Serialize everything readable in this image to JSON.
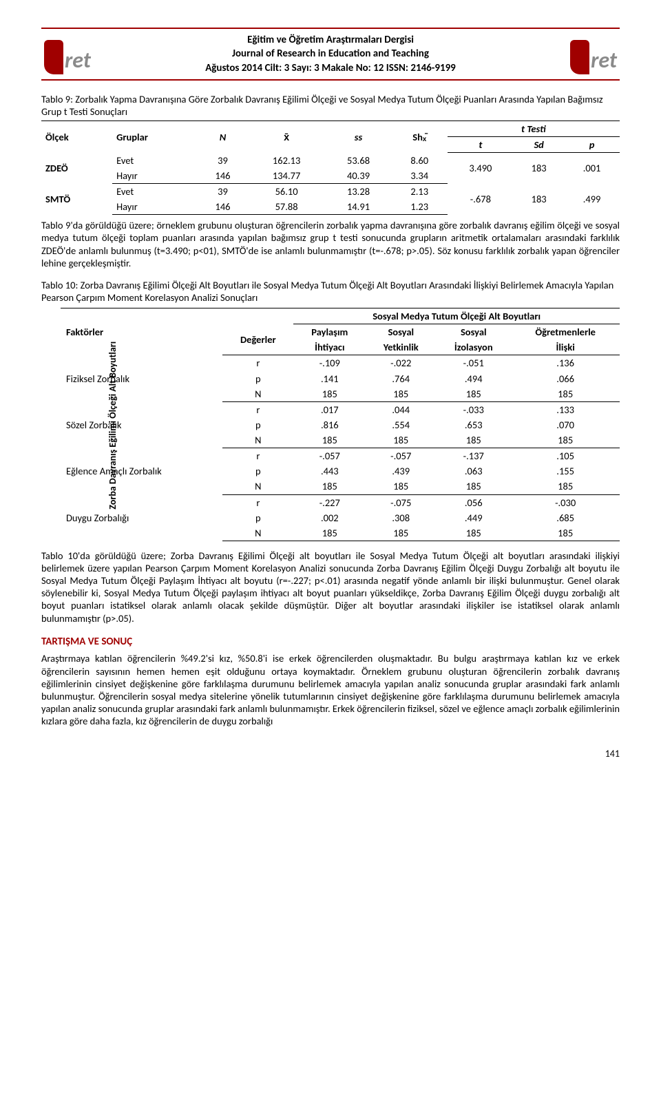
{
  "colors": {
    "accent": "#a00000",
    "text": "#000000",
    "bg": "#ffffff"
  },
  "header": {
    "line1": "Eğitim ve Öğretim Araştırmaları Dergisi",
    "line2": "Journal of Research in Education and Teaching",
    "line3": "Ağustos 2014  Cilt: 3  Sayı: 3  Makale No: 12   ISSN: 2146-9199",
    "logo_text": "ret"
  },
  "table9": {
    "caption": "Tablo 9: Zorbalık Yapma Davranışına Göre Zorbalık Davranış Eğilimi Ölçeği ve Sosyal Medya Tutum Ölçeği Puanları Arasında Yapılan Bağımsız Grup t Testi Sonuçları",
    "headers": {
      "olcek": "Ölçek",
      "gruplar": "Gruplar",
      "N": "N",
      "xbar": "x̄",
      "ss": "ss",
      "sh": "Shₓ̄",
      "ttesti": "t Testi",
      "t": "t",
      "sd": "Sd",
      "p": "p"
    },
    "rows": [
      {
        "olcek": "ZDEÖ",
        "grup": "Evet",
        "N": "39",
        "xbar": "162.13",
        "ss": "53.68",
        "sh": "8.60"
      },
      {
        "olcek": "",
        "grup": "Hayır",
        "N": "146",
        "xbar": "134.77",
        "ss": "40.39",
        "sh": "3.34",
        "t": "3.490",
        "sd": "183",
        "p": ".001"
      },
      {
        "olcek": "SMTÖ",
        "grup": "Evet",
        "N": "39",
        "xbar": "56.10",
        "ss": "13.28",
        "sh": "2.13"
      },
      {
        "olcek": "",
        "grup": "Hayır",
        "N": "146",
        "xbar": "57.88",
        "ss": "14.91",
        "sh": "1.23",
        "t": "-.678",
        "sd": "183",
        "p": ".499"
      }
    ],
    "t_vals": {
      "zdeo": {
        "t": "3.490",
        "sd": "183",
        "p": ".001"
      },
      "smto": {
        "t": "-.678",
        "sd": "183",
        "p": ".499"
      }
    }
  },
  "para_after_t9": "Tablo 9'da görüldüğü üzere; örneklem grubunu oluşturan öğrencilerin zorbalık yapma davranışına göre zorbalık davranış eğilim ölçeği ve sosyal medya tutum ölçeği toplam puanları arasında yapılan bağımsız grup t testi sonucunda grupların aritmetik ortalamaları arasındaki farklılık ZDEÖ'de anlamlı bulunmuş (t=3.490; p<01), SMTÖ'de ise anlamlı bulunmamıştır (t=-.678; p>.05). Söz konusu farklılık zorbalık yapan öğrenciler lehine gerçekleşmiştir.",
  "table10": {
    "caption": "Tablo 10: Zorba Davranış Eğilimi Ölçeği Alt Boyutları ile Sosyal Medya Tutum Ölçeği Alt Boyutları Arasındaki İlişkiyi Belirlemek Amacıyla Yapılan Pearson Çarpım Moment Korelasyon Analizi Sonuçları",
    "side_label": "Zorba Davranış Eğilimi Ölçeği Alt Boyutları",
    "headers": {
      "faktorler": "Faktörler",
      "degerler": "Değerler",
      "sosyal_medya_hdr": "Sosyal Medya Tutum Ölçeği Alt Boyutları",
      "c1a": "Paylaşım",
      "c1b": "İhtiyacı",
      "c2a": "Sosyal",
      "c2b": "Yetkinlik",
      "c3a": "Sosyal",
      "c3b": "İzolasyon",
      "c4a": "Öğretmenlerle",
      "c4b": "İlişki"
    },
    "val_labels": {
      "r": "r",
      "p": "p",
      "N": "N"
    },
    "factors": [
      {
        "name": "Fiziksel Zorbalık",
        "r": [
          "-.109",
          "-.022",
          "-.051",
          ".136"
        ],
        "p": [
          ".141",
          ".764",
          ".494",
          ".066"
        ],
        "N": [
          "185",
          "185",
          "185",
          "185"
        ]
      },
      {
        "name": "Sözel Zorbalık",
        "r": [
          ".017",
          ".044",
          "-.033",
          ".133"
        ],
        "p": [
          ".816",
          ".554",
          ".653",
          ".070"
        ],
        "N": [
          "185",
          "185",
          "185",
          "185"
        ]
      },
      {
        "name": "Eğlence Amaçlı Zorbalık",
        "r": [
          "-.057",
          "-.057",
          "-.137",
          ".105"
        ],
        "p": [
          ".443",
          ".439",
          ".063",
          ".155"
        ],
        "N": [
          "185",
          "185",
          "185",
          "185"
        ]
      },
      {
        "name": "Duygu Zorbalığı",
        "r": [
          "-.227",
          "-.075",
          ".056",
          "-.030"
        ],
        "p": [
          ".002",
          ".308",
          ".449",
          ".685"
        ],
        "N": [
          "185",
          "185",
          "185",
          "185"
        ]
      }
    ]
  },
  "para_after_t10": "Tablo 10'da görüldüğü üzere; Zorba Davranış Eğilimi Ölçeği alt boyutları ile Sosyal Medya Tutum Ölçeği alt boyutları arasındaki ilişkiyi belirlemek üzere yapılan Pearson Çarpım Moment Korelasyon Analizi sonucunda Zorba Davranış Eğilim Ölçeği Duygu Zorbalığı alt boyutu ile Sosyal Medya Tutum Ölçeği Paylaşım İhtiyacı alt boyutu (r=-.227; p<.01) arasında negatif yönde anlamlı bir ilişki bulunmuştur. Genel olarak söylenebilir ki, Sosyal Medya Tutum Ölçeği paylaşım ihtiyacı alt boyut puanları yükseldikçe, Zorba Davranış Eğilim Ölçeği duygu zorbalığı alt boyut puanları istatiksel olarak anlamlı olacak şekilde düşmüştür. Diğer alt boyutlar arasındaki ilişkiler ise istatiksel olarak anlamlı bulunmamıştır (p>.05).",
  "section_heading": "TARTIŞMA VE SONUÇ",
  "para_discussion": "Araştırmaya katılan öğrencilerin %49.2'si kız, %50.8'i ise erkek öğrencilerden oluşmaktadır. Bu bulgu araştırmaya katılan kız ve erkek öğrencilerin sayısının hemen hemen eşit olduğunu ortaya koymaktadır. Örneklem grubunu oluşturan öğrencilerin zorbalık davranış eğilimlerinin cinsiyet değişkenine göre farklılaşma durumunu belirlemek amacıyla yapılan analiz sonucunda gruplar arasındaki fark anlamlı bulunmuştur. Öğrencilerin sosyal medya sitelerine yönelik tutumlarının cinsiyet değişkenine göre farklılaşma durumunu belirlemek amacıyla yapılan analiz sonucunda gruplar arasındaki fark anlamlı bulunmamıştır. Erkek öğrencilerin fiziksel, sözel ve eğlence amaçlı zorbalık eğilimlerinin kızlara göre daha fazla, kız öğrencilerin de duygu zorbalığı",
  "page_number": "141"
}
